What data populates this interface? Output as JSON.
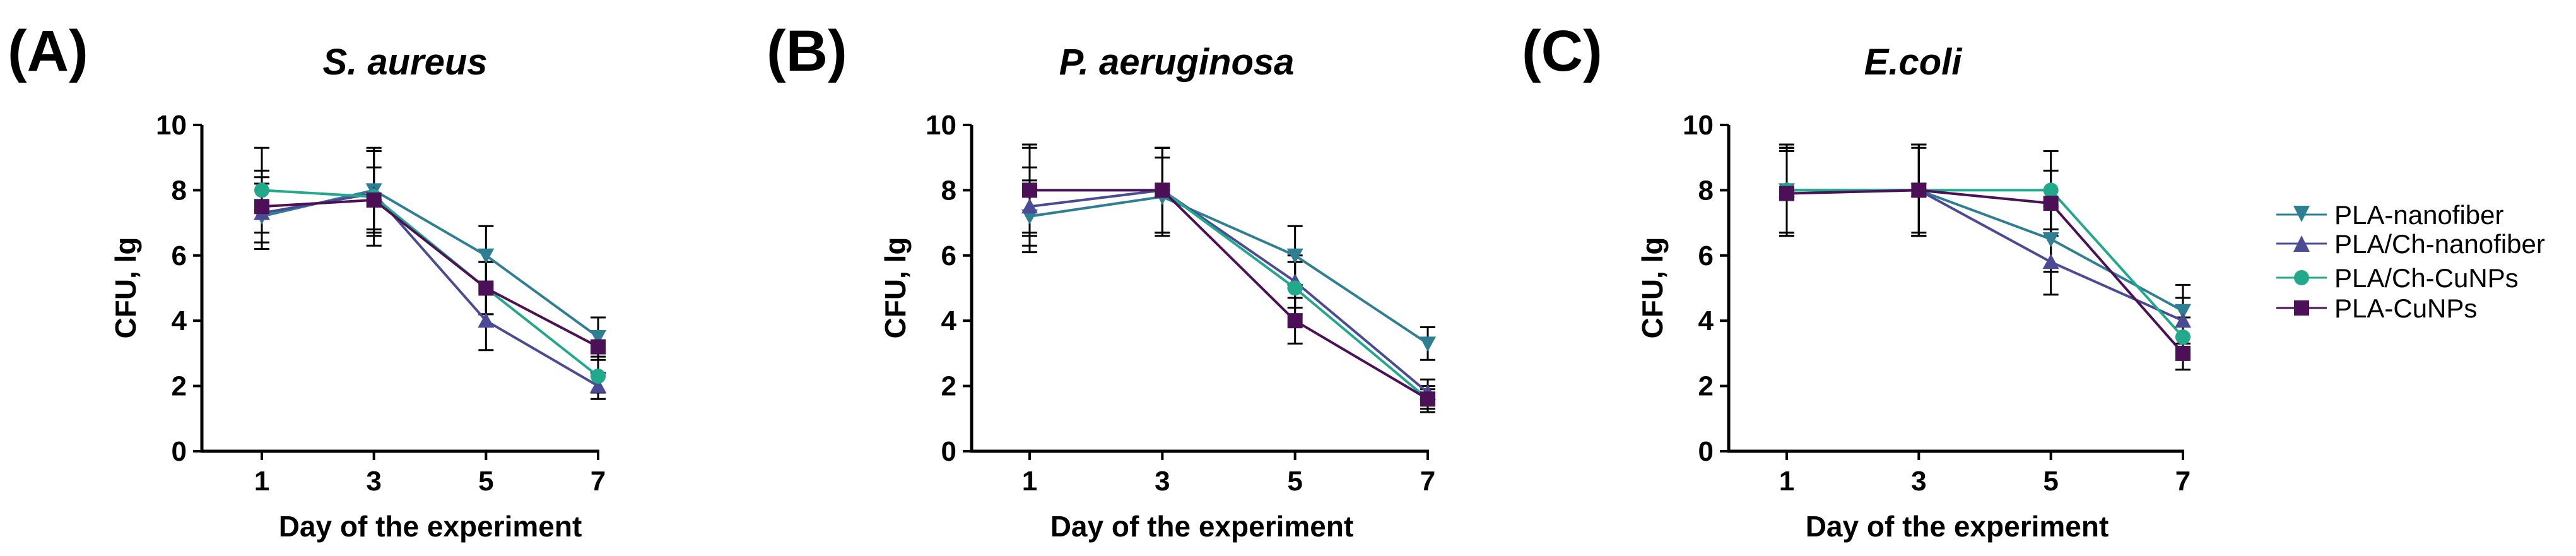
{
  "legend": [
    {
      "name": "PLA-nanofiber",
      "color": "#2e7f94",
      "marker": "triangle-down"
    },
    {
      "name": "PLA/Ch-nanofiber",
      "color": "#4b4a94",
      "marker": "triangle-up"
    },
    {
      "name": "PLA/Ch-CuNPs",
      "color": "#22a88a",
      "marker": "circle"
    },
    {
      "name": "PLA-CuNPs",
      "color": "#4b1055",
      "marker": "square"
    }
  ],
  "chart_data": [
    {
      "panel_label": "(A)",
      "type": "line",
      "title": "S. aureus",
      "xlabel": "Day of the experiment",
      "ylabel": "CFU, lg",
      "x": [
        1,
        3,
        5,
        7
      ],
      "x_ticks": [
        "1",
        "3",
        "5",
        "7"
      ],
      "ylim": [
        0,
        10
      ],
      "y_ticks": [
        "0",
        "2",
        "4",
        "6",
        "8",
        "10"
      ],
      "series": [
        {
          "name": "PLA-nanofiber",
          "values": [
            7.2,
            8.0,
            6.0,
            3.5
          ],
          "error": [
            1.0,
            1.2,
            0.9,
            0.6
          ]
        },
        {
          "name": "PLA/Ch-nanofiber",
          "values": [
            7.3,
            7.9,
            4.0,
            2.0
          ],
          "error": [
            1.1,
            1.3,
            0.9,
            0.4
          ]
        },
        {
          "name": "PLA/Ch-CuNPs",
          "values": [
            8.0,
            7.8,
            5.0,
            2.3
          ],
          "error": [
            1.3,
            1.5,
            0.8,
            0.5
          ]
        },
        {
          "name": "PLA-CuNPs",
          "values": [
            7.5,
            7.7,
            5.0,
            3.2
          ],
          "error": [
            1.1,
            1.0,
            0.8,
            0.9
          ]
        }
      ]
    },
    {
      "panel_label": "(B)",
      "type": "line",
      "title": "P. aeruginosa",
      "xlabel": "Day of the experiment",
      "ylabel": "CFU, lg",
      "x": [
        1,
        3,
        5,
        7
      ],
      "x_ticks": [
        "1",
        "3",
        "5",
        "7"
      ],
      "ylim": [
        0,
        10
      ],
      "y_ticks": [
        "0",
        "2",
        "4",
        "6",
        "8",
        "10"
      ],
      "series": [
        {
          "name": "PLA-nanofiber",
          "values": [
            7.2,
            7.8,
            6.0,
            3.3
          ],
          "error": [
            1.1,
            1.2,
            0.9,
            0.5
          ]
        },
        {
          "name": "PLA/Ch-nanofiber",
          "values": [
            7.5,
            8.0,
            5.2,
            1.8
          ],
          "error": [
            1.2,
            1.3,
            0.8,
            0.4
          ]
        },
        {
          "name": "PLA/Ch-CuNPs",
          "values": [
            8.0,
            8.0,
            5.0,
            1.6
          ],
          "error": [
            1.4,
            1.3,
            0.8,
            0.4
          ]
        },
        {
          "name": "PLA-CuNPs",
          "values": [
            8.0,
            8.0,
            4.0,
            1.6
          ],
          "error": [
            1.3,
            1.3,
            0.7,
            0.3
          ]
        }
      ]
    },
    {
      "panel_label": "(C)",
      "type": "line",
      "title": "E.coli",
      "xlabel": "Day of the experiment",
      "ylabel": "CFU, lg",
      "x": [
        1,
        3,
        5,
        7
      ],
      "x_ticks": [
        "1",
        "3",
        "5",
        "7"
      ],
      "ylim": [
        0,
        10
      ],
      "y_ticks": [
        "0",
        "2",
        "4",
        "6",
        "8",
        "10"
      ],
      "series": [
        {
          "name": "PLA-nanofiber",
          "values": [
            8.0,
            8.0,
            6.5,
            4.3
          ],
          "error": [
            1.4,
            1.4,
            1.0,
            0.8
          ]
        },
        {
          "name": "PLA/Ch-nanofiber",
          "values": [
            8.0,
            8.0,
            5.8,
            4.0
          ],
          "error": [
            1.3,
            1.4,
            1.0,
            0.7
          ]
        },
        {
          "name": "PLA/Ch-CuNPs",
          "values": [
            8.0,
            8.0,
            8.0,
            3.5
          ],
          "error": [
            1.3,
            1.3,
            1.2,
            0.6
          ]
        },
        {
          "name": "PLA-CuNPs",
          "values": [
            7.9,
            8.0,
            7.6,
            3.0
          ],
          "error": [
            1.3,
            1.4,
            1.0,
            0.5
          ]
        }
      ]
    }
  ]
}
